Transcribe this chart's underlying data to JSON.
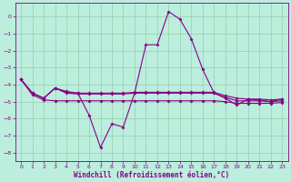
{
  "xlabel": "Windchill (Refroidissement éolien,°C)",
  "x": [
    0,
    1,
    2,
    3,
    4,
    5,
    6,
    7,
    8,
    9,
    10,
    11,
    12,
    13,
    14,
    15,
    16,
    17,
    18,
    19,
    20,
    21,
    22,
    23
  ],
  "line1": [
    -3.7,
    -4.5,
    -4.8,
    -4.2,
    -4.4,
    -4.5,
    -5.8,
    -7.7,
    -6.3,
    -6.5,
    -4.5,
    -1.65,
    -1.65,
    0.3,
    -0.15,
    -1.3,
    -3.1,
    -4.5,
    -4.8,
    -5.2,
    -4.85,
    -4.9,
    -5.0,
    -4.85
  ],
  "line2": [
    -3.7,
    -4.5,
    -4.8,
    -4.2,
    -4.45,
    -4.5,
    -4.5,
    -4.5,
    -4.5,
    -4.5,
    -4.45,
    -4.45,
    -4.45,
    -4.45,
    -4.45,
    -4.45,
    -4.45,
    -4.45,
    -4.65,
    -4.8,
    -4.85,
    -4.85,
    -4.9,
    -4.85
  ],
  "line3": [
    -3.7,
    -4.5,
    -4.8,
    -4.2,
    -4.5,
    -4.55,
    -4.55,
    -4.55,
    -4.55,
    -4.55,
    -4.5,
    -4.5,
    -4.5,
    -4.5,
    -4.5,
    -4.5,
    -4.5,
    -4.5,
    -4.75,
    -4.95,
    -4.95,
    -4.95,
    -5.0,
    -4.95
  ],
  "line4": [
    -3.7,
    -4.6,
    -4.9,
    -4.95,
    -4.95,
    -4.95,
    -4.95,
    -4.95,
    -4.95,
    -4.95,
    -4.95,
    -4.95,
    -4.95,
    -4.95,
    -4.95,
    -4.95,
    -4.95,
    -4.95,
    -5.0,
    -5.1,
    -5.1,
    -5.1,
    -5.1,
    -5.05
  ],
  "line_color": "#880088",
  "bg_color": "#bbeedd",
  "grid_color": "#99ccaa",
  "ylim": [
    -8.5,
    0.8
  ],
  "xlim": [
    -0.5,
    23.5
  ],
  "yticks": [
    0,
    -1,
    -2,
    -3,
    -4,
    -5,
    -6,
    -7,
    -8
  ],
  "xticks": [
    0,
    1,
    2,
    3,
    4,
    5,
    6,
    7,
    8,
    9,
    10,
    11,
    12,
    13,
    14,
    15,
    16,
    17,
    18,
    19,
    20,
    21,
    22,
    23
  ]
}
